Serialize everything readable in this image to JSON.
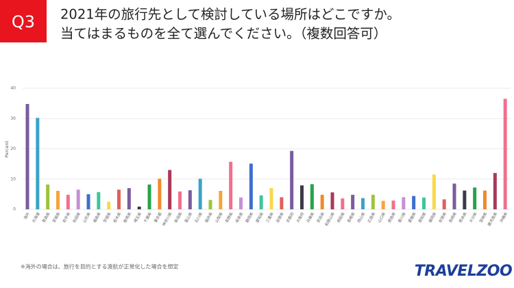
{
  "chart_data": {
    "type": "bar",
    "badge": "Q3",
    "title_lines": [
      "2021年の旅行先として検討している場所はどこですか。",
      "当てはまるものを全て選んでください。（複数回答可）"
    ],
    "y_label": "Percent",
    "footnote": "※海外の場合は、旅行を目的とする渡航が正常化した場合を想定",
    "logo": "TRAVELZOO",
    "categories": [
      "海外",
      "北海道",
      "青森県",
      "宮城県",
      "岩手県",
      "秋田県",
      "山形県",
      "福島県",
      "茨城県",
      "栃木県",
      "群馬県",
      "埼玉県",
      "千葉県",
      "東京都",
      "神奈川県",
      "新潟県",
      "富山県",
      "石川県",
      "福井県",
      "山梨県",
      "長野県",
      "岐阜県",
      "静岡県",
      "愛知県",
      "三重県",
      "滋賀県",
      "京都府",
      "大阪府",
      "兵庫県",
      "奈良県",
      "和歌山県",
      "鳥取県",
      "島根県",
      "岡山県",
      "広島県",
      "山口県",
      "徳島県",
      "香川県",
      "愛媛県",
      "高知県",
      "福岡県",
      "佐賀県",
      "長崎県",
      "熊本県",
      "大分県",
      "宮崎県",
      "鹿児島県",
      "沖縄県"
    ],
    "values": [
      34.8,
      30.2,
      8.2,
      6.1,
      4.8,
      6.5,
      5.0,
      5.7,
      2.5,
      6.5,
      7.0,
      0.9,
      8.2,
      10.1,
      13.0,
      5.9,
      6.3,
      10.1,
      3.1,
      6.1,
      15.7,
      3.9,
      15.1,
      4.6,
      7.0,
      4.0,
      19.3,
      7.9,
      8.3,
      4.8,
      5.6,
      3.6,
      4.8,
      3.7,
      4.8,
      2.8,
      2.9,
      4.0,
      4.4,
      3.9,
      11.5,
      3.3,
      8.5,
      6.2,
      7.2,
      6.2,
      12.0,
      36.5
    ],
    "colors": [
      "#7a5c9e",
      "#3aa3c9",
      "#9dc43a",
      "#f5a43a",
      "#f0708e",
      "#c58fd6",
      "#3d6fd1",
      "#3fc49c",
      "#f9d84a",
      "#e2605a",
      "#7a5c9e",
      "#3b3b48",
      "#27a34a",
      "#f08a2c",
      "#a83a5a",
      "#f0708e",
      "#7a5c9e",
      "#3aa3c9",
      "#9dc43a",
      "#f5a43a",
      "#f0708e",
      "#c58fd6",
      "#3d6fd1",
      "#3fc49c",
      "#f9d84a",
      "#e2605a",
      "#7a5c9e",
      "#3b3b48",
      "#27a34a",
      "#f08a2c",
      "#a83a5a",
      "#f0708e",
      "#7a5c9e",
      "#3aa3c9",
      "#9dc43a",
      "#f5a43a",
      "#f0708e",
      "#c58fd6",
      "#3d6fd1",
      "#3fc49c",
      "#f9d84a",
      "#e2605a",
      "#7a5c9e",
      "#3b3b48",
      "#27a34a",
      "#f08a2c",
      "#a83a5a",
      "#f0708e"
    ],
    "ylim": [
      0,
      40
    ],
    "yticks": [
      0,
      10,
      20,
      30,
      40
    ],
    "grid": true
  }
}
